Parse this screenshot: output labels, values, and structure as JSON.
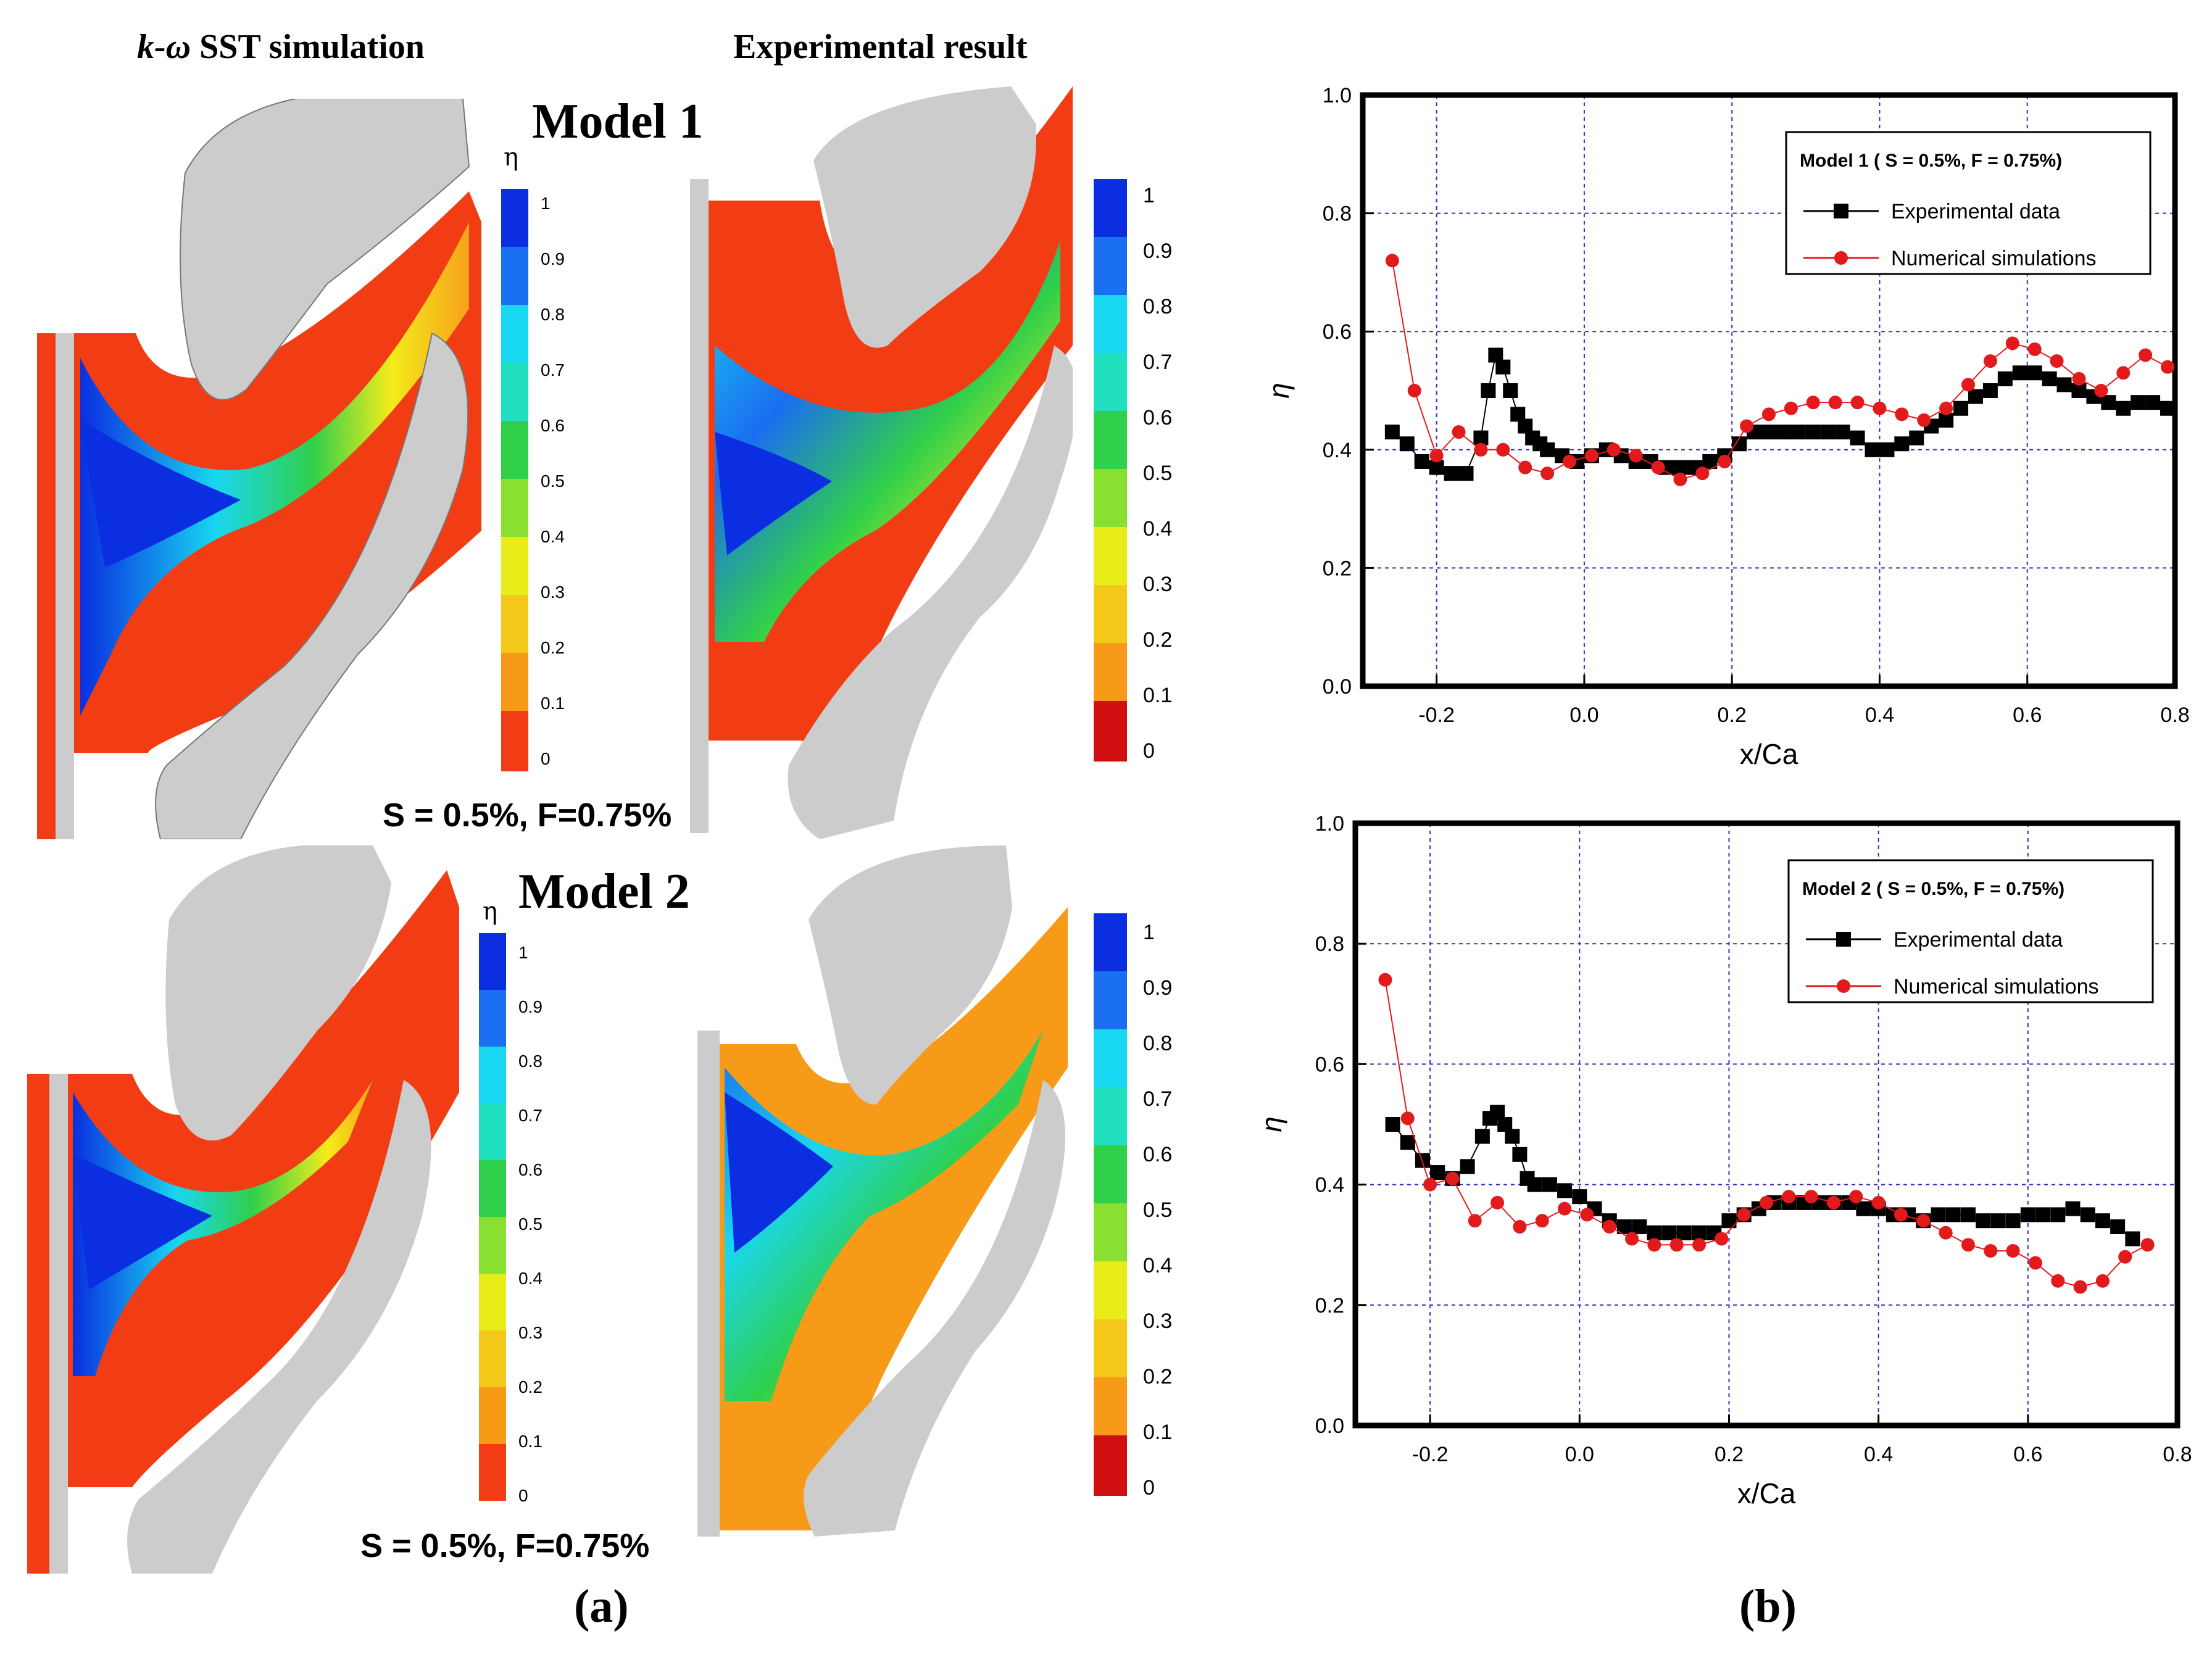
{
  "panel_a": {
    "label": "(a)",
    "col_sim_title_k": "k-ω",
    "col_sim_title_rest": " SST simulation",
    "col_exp_title": "Experimental result",
    "model1_title": "Model 1",
    "model2_title": "Model 2",
    "eta_symbol": "η",
    "model1_condition": "S = 0.5%, F=0.75%",
    "model2_condition": "S = 0.5%, F=0.75%",
    "colorbar_ticks_sim": [
      "1",
      "0.9",
      "0.8",
      "0.7",
      "0.6",
      "0.5",
      "0.4",
      "0.3",
      "0.2",
      "0.1",
      "0"
    ],
    "colorbar_ticks_exp": [
      "1",
      "0.9",
      "0.8",
      "0.7",
      "0.6",
      "0.5",
      "0.4",
      "0.3",
      "0.2",
      "0.1",
      "0"
    ],
    "colors": {
      "blade": "#cccccc",
      "high": "#0a2ee0",
      "mid_high": "#18d7f0",
      "mid": "#30d04a",
      "mid_low": "#f4ec1a",
      "low_mid": "#f7a21a",
      "low": "#f23c14"
    }
  },
  "panel_b": {
    "label": "(b)"
  },
  "chart_data": [
    {
      "type": "line",
      "legend_title": "Model 1 ( S = 0.5%, F = 0.75%)",
      "xlabel": "x/Ca",
      "ylabel": "η",
      "xlim": [
        -0.3,
        0.8
      ],
      "ylim": [
        0.0,
        1.0
      ],
      "xticks": [
        -0.2,
        0.0,
        0.2,
        0.4,
        0.6,
        0.8
      ],
      "yticks": [
        0.0,
        0.2,
        0.4,
        0.6,
        0.8,
        1.0
      ],
      "xtick_labels": [
        "-0.2",
        "0.0",
        "0.2",
        "0.4",
        "0.6",
        "0.8"
      ],
      "ytick_labels": [
        "0.0",
        "0.2",
        "0.4",
        "0.6",
        "0.8",
        "1.0"
      ],
      "grid": true,
      "legend_position": "top-right",
      "series": [
        {
          "name": "Experimental data",
          "color": "#000000",
          "marker": "square",
          "x": [
            -0.26,
            -0.24,
            -0.22,
            -0.2,
            -0.18,
            -0.16,
            -0.14,
            -0.13,
            -0.12,
            -0.11,
            -0.1,
            -0.09,
            -0.08,
            -0.07,
            -0.06,
            -0.05,
            -0.03,
            -0.01,
            0.01,
            0.03,
            0.05,
            0.07,
            0.09,
            0.11,
            0.13,
            0.15,
            0.17,
            0.19,
            0.21,
            0.23,
            0.25,
            0.27,
            0.29,
            0.31,
            0.33,
            0.35,
            0.37,
            0.39,
            0.41,
            0.43,
            0.45,
            0.47,
            0.49,
            0.51,
            0.53,
            0.55,
            0.57,
            0.59,
            0.61,
            0.63,
            0.65,
            0.67,
            0.69,
            0.71,
            0.73,
            0.75,
            0.77,
            0.79
          ],
          "y": [
            0.43,
            0.41,
            0.38,
            0.37,
            0.36,
            0.36,
            0.42,
            0.5,
            0.56,
            0.54,
            0.5,
            0.46,
            0.44,
            0.42,
            0.41,
            0.4,
            0.39,
            0.38,
            0.39,
            0.4,
            0.39,
            0.38,
            0.38,
            0.37,
            0.37,
            0.37,
            0.38,
            0.39,
            0.41,
            0.43,
            0.43,
            0.43,
            0.43,
            0.43,
            0.43,
            0.43,
            0.42,
            0.4,
            0.4,
            0.41,
            0.42,
            0.44,
            0.45,
            0.47,
            0.49,
            0.5,
            0.52,
            0.53,
            0.53,
            0.52,
            0.51,
            0.5,
            0.49,
            0.48,
            0.47,
            0.48,
            0.48,
            0.47
          ]
        },
        {
          "name": "Numerical simulations",
          "color": "#e31a1c",
          "marker": "circle",
          "x": [
            -0.26,
            -0.23,
            -0.2,
            -0.17,
            -0.14,
            -0.11,
            -0.08,
            -0.05,
            -0.02,
            0.01,
            0.04,
            0.07,
            0.1,
            0.13,
            0.16,
            0.19,
            0.22,
            0.25,
            0.28,
            0.31,
            0.34,
            0.37,
            0.4,
            0.43,
            0.46,
            0.49,
            0.52,
            0.55,
            0.58,
            0.61,
            0.64,
            0.67,
            0.7,
            0.73,
            0.76,
            0.79
          ],
          "y": [
            0.72,
            0.5,
            0.39,
            0.43,
            0.4,
            0.4,
            0.37,
            0.36,
            0.38,
            0.39,
            0.4,
            0.39,
            0.37,
            0.35,
            0.36,
            0.38,
            0.44,
            0.46,
            0.47,
            0.48,
            0.48,
            0.48,
            0.47,
            0.46,
            0.45,
            0.47,
            0.51,
            0.55,
            0.58,
            0.57,
            0.55,
            0.52,
            0.5,
            0.53,
            0.56,
            0.54
          ]
        }
      ]
    },
    {
      "type": "line",
      "legend_title": "Model 2 ( S = 0.5%, F = 0.75%)",
      "xlabel": "x/Ca",
      "ylabel": "η",
      "xlim": [
        -0.3,
        0.8
      ],
      "ylim": [
        0.0,
        1.0
      ],
      "xticks": [
        -0.2,
        0.0,
        0.2,
        0.4,
        0.6,
        0.8
      ],
      "yticks": [
        0.0,
        0.2,
        0.4,
        0.6,
        0.8,
        1.0
      ],
      "xtick_labels": [
        "-0.2",
        "0.0",
        "0.2",
        "0.4",
        "0.6",
        "0.8"
      ],
      "ytick_labels": [
        "0.0",
        "0.2",
        "0.4",
        "0.6",
        "0.8",
        "1.0"
      ],
      "grid": true,
      "legend_position": "top-right",
      "series": [
        {
          "name": "Experimental data",
          "color": "#000000",
          "marker": "square",
          "x": [
            -0.25,
            -0.23,
            -0.21,
            -0.19,
            -0.17,
            -0.15,
            -0.13,
            -0.12,
            -0.11,
            -0.1,
            -0.09,
            -0.08,
            -0.07,
            -0.06,
            -0.04,
            -0.02,
            0.0,
            0.02,
            0.04,
            0.06,
            0.08,
            0.1,
            0.12,
            0.14,
            0.16,
            0.18,
            0.2,
            0.22,
            0.24,
            0.26,
            0.28,
            0.3,
            0.32,
            0.34,
            0.36,
            0.38,
            0.4,
            0.42,
            0.44,
            0.46,
            0.48,
            0.5,
            0.52,
            0.54,
            0.56,
            0.58,
            0.6,
            0.62,
            0.64,
            0.66,
            0.68,
            0.7,
            0.72,
            0.74
          ],
          "y": [
            0.5,
            0.47,
            0.44,
            0.42,
            0.41,
            0.43,
            0.48,
            0.51,
            0.52,
            0.5,
            0.48,
            0.45,
            0.41,
            0.4,
            0.4,
            0.39,
            0.38,
            0.36,
            0.34,
            0.33,
            0.33,
            0.32,
            0.32,
            0.32,
            0.32,
            0.32,
            0.34,
            0.35,
            0.36,
            0.37,
            0.37,
            0.37,
            0.37,
            0.37,
            0.37,
            0.36,
            0.36,
            0.35,
            0.35,
            0.34,
            0.35,
            0.35,
            0.35,
            0.34,
            0.34,
            0.34,
            0.35,
            0.35,
            0.35,
            0.36,
            0.35,
            0.34,
            0.33,
            0.31
          ]
        },
        {
          "name": "Numerical simulations",
          "color": "#e31a1c",
          "marker": "circle",
          "x": [
            -0.26,
            -0.23,
            -0.2,
            -0.17,
            -0.14,
            -0.11,
            -0.08,
            -0.05,
            -0.02,
            0.01,
            0.04,
            0.07,
            0.1,
            0.13,
            0.16,
            0.19,
            0.22,
            0.25,
            0.28,
            0.31,
            0.34,
            0.37,
            0.4,
            0.43,
            0.46,
            0.49,
            0.52,
            0.55,
            0.58,
            0.61,
            0.64,
            0.67,
            0.7,
            0.73,
            0.76
          ],
          "y": [
            0.74,
            0.51,
            0.4,
            0.41,
            0.34,
            0.37,
            0.33,
            0.34,
            0.36,
            0.35,
            0.33,
            0.31,
            0.3,
            0.3,
            0.3,
            0.31,
            0.35,
            0.37,
            0.38,
            0.38,
            0.37,
            0.38,
            0.37,
            0.35,
            0.34,
            0.32,
            0.3,
            0.29,
            0.29,
            0.27,
            0.24,
            0.23,
            0.24,
            0.28,
            0.3
          ]
        }
      ]
    }
  ]
}
